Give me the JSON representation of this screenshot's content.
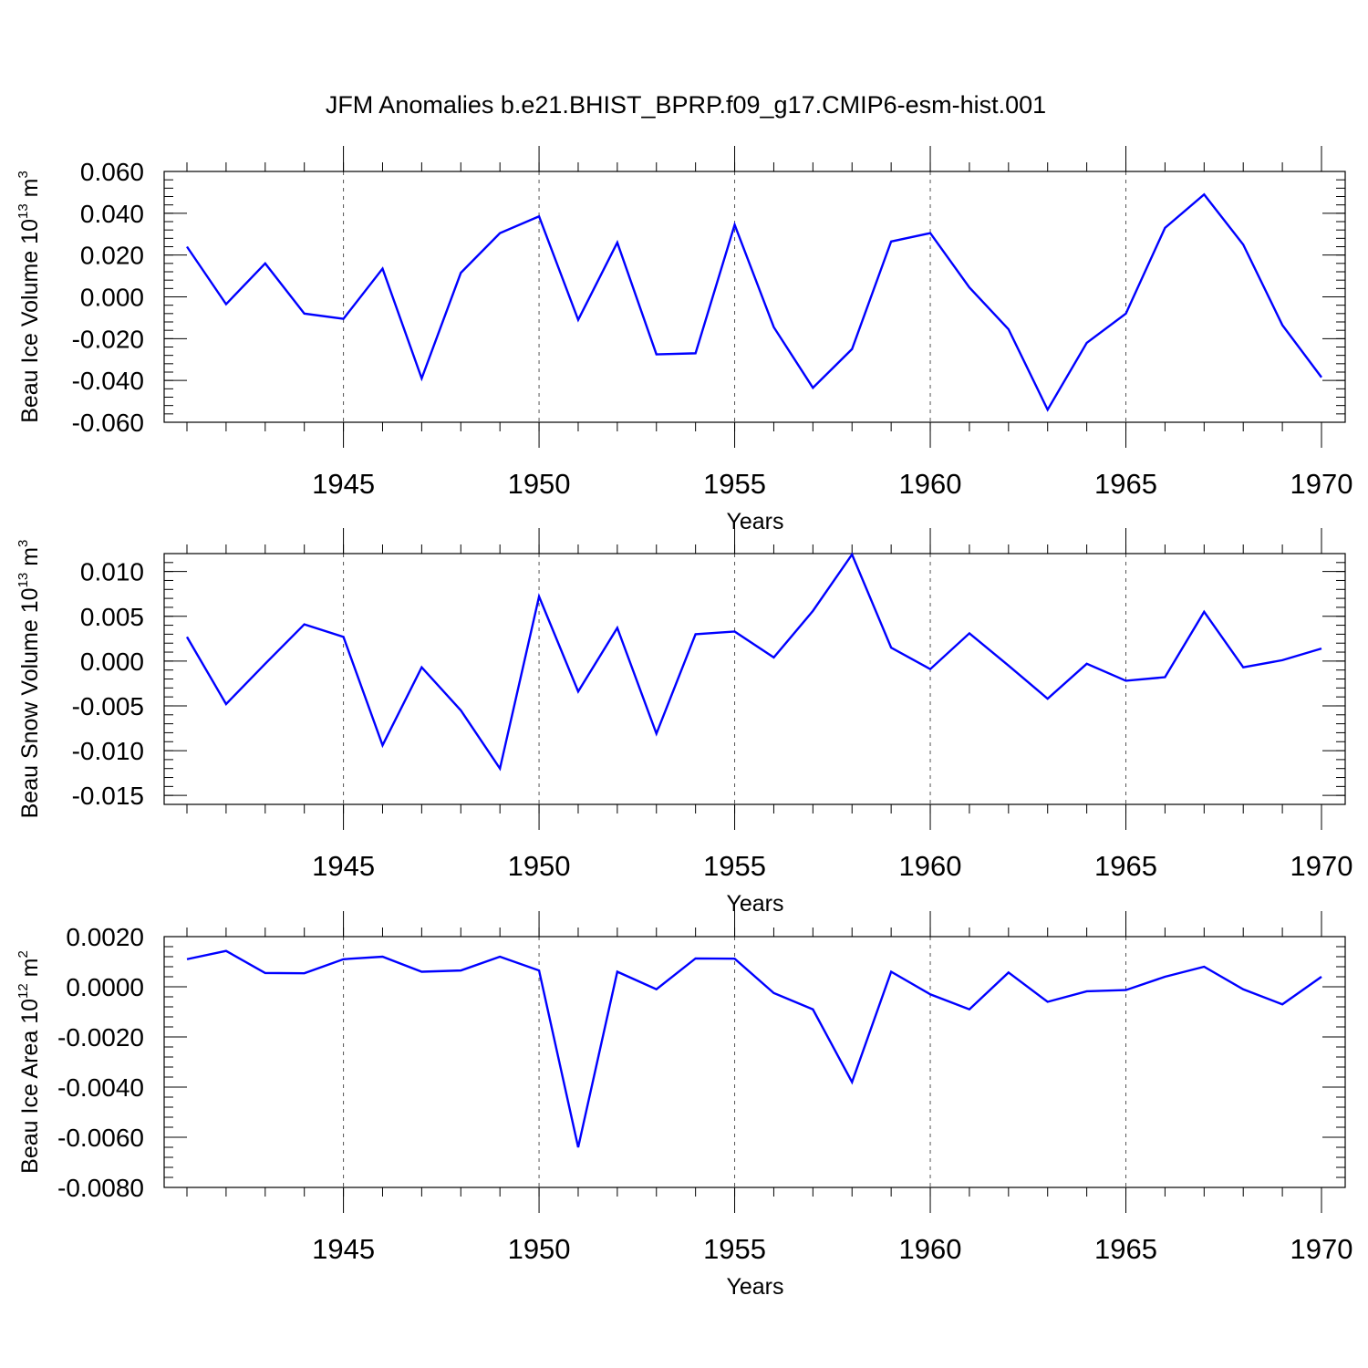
{
  "title": "JFM Anomalies b.e21.BHIST_BPRP.f09_g17.CMIP6-esm-hist.001",
  "colors": {
    "line": "#0000ff",
    "axis": "#000000",
    "grid": "#555555"
  },
  "chart_data": [
    {
      "type": "line",
      "xlabel": "Years",
      "ylabel": {
        "text": "Beau Ice Volume 10",
        "exp": "13",
        "unit": " m",
        "unit_exp": "3"
      },
      "xlim": [
        1941,
        1970
      ],
      "ylim": [
        -0.06,
        0.06
      ],
      "yticks": [
        -0.06,
        -0.04,
        -0.02,
        0.0,
        0.02,
        0.04,
        0.06
      ],
      "ytick_labels": [
        "-0.060",
        "-0.040",
        "-0.020",
        "0.000",
        "0.020",
        "0.040",
        "0.060"
      ],
      "xticks": [
        1945,
        1950,
        1955,
        1960,
        1965,
        1970
      ],
      "xtick_labels": [
        "1945",
        "1950",
        "1955",
        "1960",
        "1965",
        "1970"
      ],
      "grid": "vertical dashed at major x ticks",
      "series": [
        {
          "name": "Beau Ice Volume",
          "x": [
            1941,
            1942,
            1943,
            1944,
            1945,
            1946,
            1947,
            1948,
            1949,
            1950,
            1951,
            1952,
            1953,
            1954,
            1955,
            1956,
            1957,
            1958,
            1959,
            1960,
            1961,
            1962,
            1963,
            1964,
            1965,
            1966,
            1967,
            1968,
            1969,
            1970
          ],
          "values": [
            0.024,
            -0.0035,
            0.016,
            -0.008,
            -0.0105,
            0.0135,
            -0.039,
            0.0115,
            0.0305,
            0.0385,
            -0.011,
            0.026,
            -0.0275,
            -0.027,
            0.0345,
            -0.0145,
            -0.0435,
            -0.025,
            0.0265,
            0.0305,
            0.0045,
            -0.0155,
            -0.054,
            -0.022,
            -0.008,
            0.033,
            0.049,
            0.025,
            -0.0135,
            -0.0385
          ]
        }
      ]
    },
    {
      "type": "line",
      "xlabel": "Years",
      "ylabel": {
        "text": "Beau Snow Volume 10",
        "exp": "13",
        "unit": " m",
        "unit_exp": "3"
      },
      "xlim": [
        1941,
        1970
      ],
      "ylim": [
        -0.016,
        0.012
      ],
      "yticks": [
        -0.015,
        -0.01,
        -0.005,
        0.0,
        0.005,
        0.01
      ],
      "ytick_labels": [
        "-0.015",
        "-0.010",
        "-0.005",
        "0.000",
        "0.005",
        "0.010"
      ],
      "xticks": [
        1945,
        1950,
        1955,
        1960,
        1965,
        1970
      ],
      "xtick_labels": [
        "1945",
        "1950",
        "1955",
        "1960",
        "1965",
        "1970"
      ],
      "grid": "vertical dashed at major x ticks",
      "series": [
        {
          "name": "Beau Snow Volume",
          "x": [
            1941,
            1942,
            1943,
            1944,
            1945,
            1946,
            1947,
            1948,
            1949,
            1950,
            1951,
            1952,
            1953,
            1954,
            1955,
            1956,
            1957,
            1958,
            1959,
            1960,
            1961,
            1962,
            1963,
            1964,
            1965,
            1966,
            1967,
            1968,
            1969,
            1970
          ],
          "values": [
            0.0027,
            -0.0048,
            -0.0003,
            0.0041,
            0.0027,
            -0.0094,
            -0.0007,
            -0.0055,
            -0.012,
            0.0072,
            -0.0034,
            0.0037,
            -0.0081,
            0.003,
            0.0033,
            0.0004,
            0.0056,
            0.0119,
            0.0015,
            -0.0009,
            0.0031,
            -0.0005,
            -0.0042,
            -0.0003,
            -0.0022,
            -0.0018,
            0.0055,
            -0.0007,
            0.0001,
            0.0014
          ]
        }
      ]
    },
    {
      "type": "line",
      "xlabel": "Years",
      "ylabel": {
        "text": "Beau Ice Area 10",
        "exp": "12",
        "unit": " m",
        "unit_exp": "2"
      },
      "xlim": [
        1941,
        1970
      ],
      "ylim": [
        -0.008,
        0.002
      ],
      "yticks": [
        -0.008,
        -0.006,
        -0.004,
        -0.002,
        0.0,
        0.002
      ],
      "ytick_labels": [
        "-0.0080",
        "-0.0060",
        "-0.0040",
        "-0.0020",
        "0.0000",
        "0.0020"
      ],
      "xticks": [
        1945,
        1950,
        1955,
        1960,
        1965,
        1970
      ],
      "xtick_labels": [
        "1945",
        "1950",
        "1955",
        "1960",
        "1965",
        "1970"
      ],
      "grid": "vertical dashed at major x ticks",
      "series": [
        {
          "name": "Beau Ice Area",
          "x": [
            1941,
            1942,
            1943,
            1944,
            1945,
            1946,
            1947,
            1948,
            1949,
            1950,
            1951,
            1952,
            1953,
            1954,
            1955,
            1956,
            1957,
            1958,
            1959,
            1960,
            1961,
            1962,
            1963,
            1964,
            1965,
            1966,
            1967,
            1968,
            1969,
            1970
          ],
          "values": [
            0.0011,
            0.00143,
            0.00055,
            0.00054,
            0.0011,
            0.0012,
            0.0006,
            0.00065,
            0.0012,
            0.00065,
            -0.0064,
            0.0006,
            -0.0001,
            0.00113,
            0.00112,
            -0.00025,
            -0.0009,
            -0.0038,
            0.0006,
            -0.0003,
            -0.0009,
            0.00057,
            -0.0006,
            -0.00018,
            -0.00013,
            0.0004,
            0.0008,
            -0.0001,
            -0.0007,
            0.0004
          ]
        }
      ]
    }
  ]
}
